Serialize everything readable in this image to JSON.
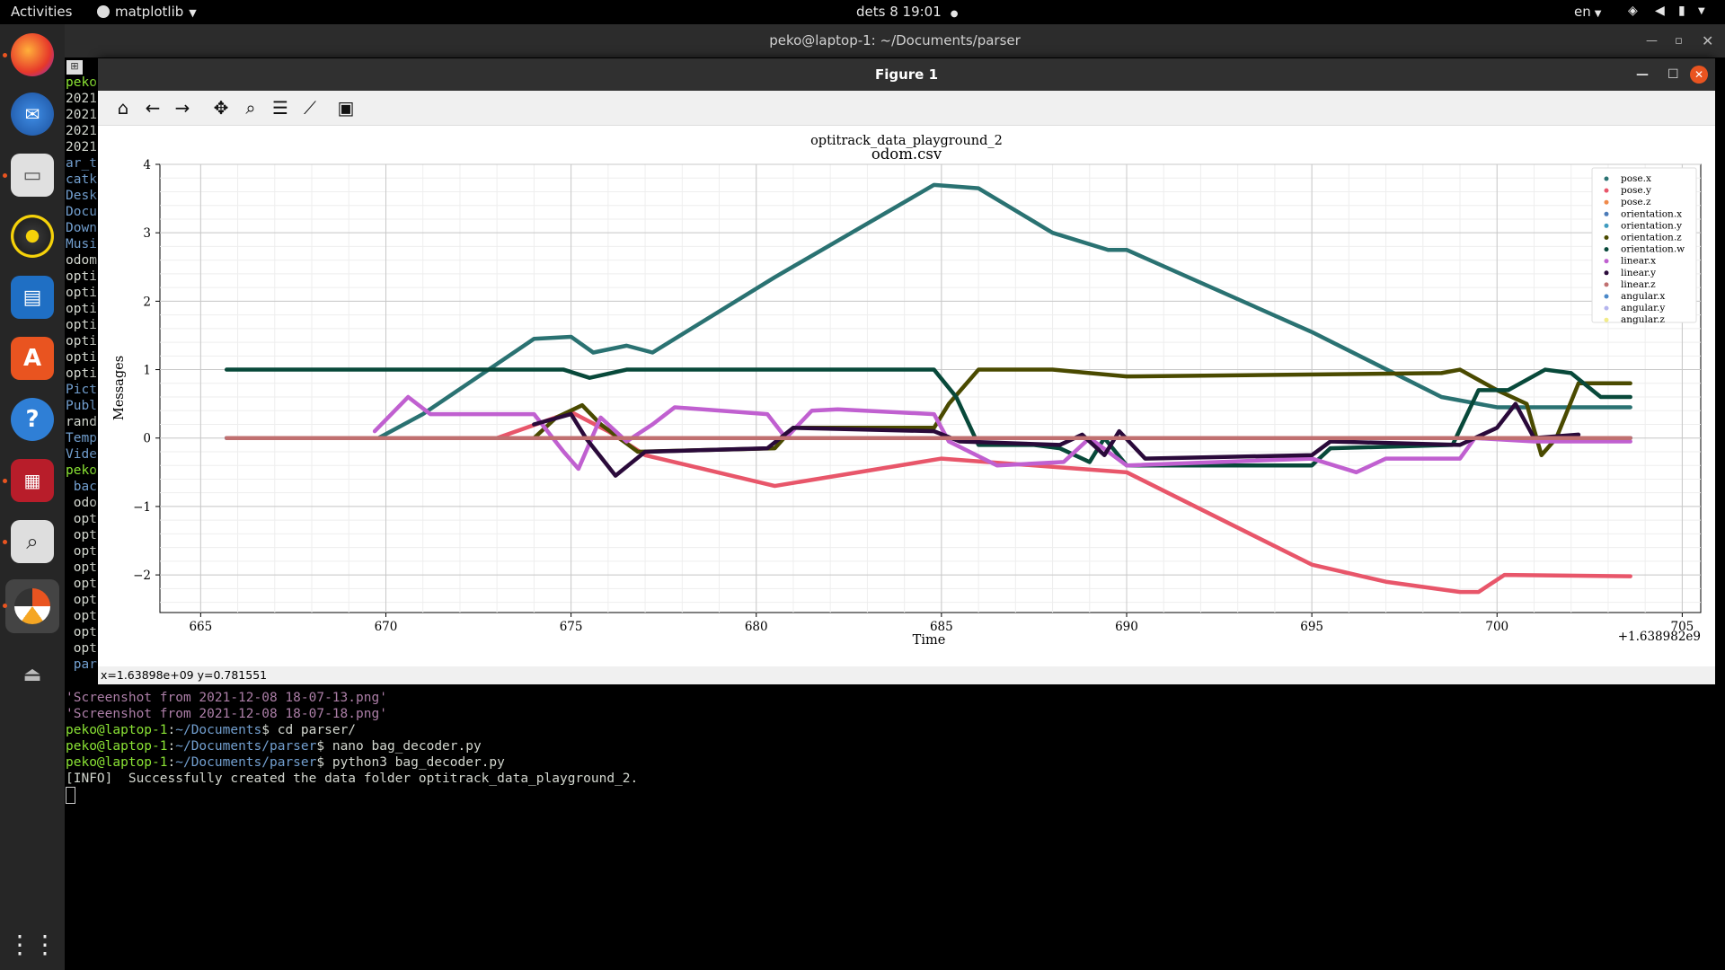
{
  "topbar": {
    "activities": "Activities",
    "app_name": "matplotlib",
    "datetime": "dets 8  19:01",
    "lang": "en"
  },
  "terminal": {
    "title": "peko@laptop-1: ~/Documents/parser",
    "left_lines": [
      {
        "t": "peko",
        "c": "#8ae234"
      },
      {
        "t": "2021",
        "c": "#d3d7cf"
      },
      {
        "t": "2021",
        "c": "#d3d7cf"
      },
      {
        "t": "2021",
        "c": "#d3d7cf"
      },
      {
        "t": "2021",
        "c": "#d3d7cf"
      },
      {
        "t": "ar_t",
        "c": "#729fcf"
      },
      {
        "t": "catk",
        "c": "#729fcf"
      },
      {
        "t": "Desk",
        "c": "#729fcf"
      },
      {
        "t": "Docu",
        "c": "#729fcf"
      },
      {
        "t": "Down",
        "c": "#729fcf"
      },
      {
        "t": "Musi",
        "c": "#729fcf"
      },
      {
        "t": "odom",
        "c": "#d3d7cf"
      },
      {
        "t": "opti",
        "c": "#d3d7cf"
      },
      {
        "t": "opti",
        "c": "#d3d7cf"
      },
      {
        "t": "opti",
        "c": "#d3d7cf"
      },
      {
        "t": "opti",
        "c": "#d3d7cf"
      },
      {
        "t": "opti",
        "c": "#d3d7cf"
      },
      {
        "t": "opti",
        "c": "#d3d7cf"
      },
      {
        "t": "opti",
        "c": "#d3d7cf"
      },
      {
        "t": "Pict",
        "c": "#729fcf"
      },
      {
        "t": "Publ",
        "c": "#729fcf"
      },
      {
        "t": "rand",
        "c": "#d3d7cf"
      },
      {
        "t": "Temp",
        "c": "#729fcf"
      },
      {
        "t": "Vide",
        "c": "#729fcf"
      },
      {
        "t": "peko",
        "c": "#8ae234"
      },
      {
        "t": " bac",
        "c": "#729fcf"
      },
      {
        "t": " odo",
        "c": "#d3d7cf"
      },
      {
        "t": " opt",
        "c": "#d3d7cf"
      },
      {
        "t": " opt",
        "c": "#d3d7cf"
      },
      {
        "t": " opt",
        "c": "#d3d7cf"
      },
      {
        "t": " opt",
        "c": "#d3d7cf"
      },
      {
        "t": " opt",
        "c": "#d3d7cf"
      },
      {
        "t": " opt",
        "c": "#d3d7cf"
      },
      {
        "t": " opt",
        "c": "#d3d7cf"
      },
      {
        "t": " opt",
        "c": "#d3d7cf"
      },
      {
        "t": " opt",
        "c": "#d3d7cf"
      },
      {
        "t": " par",
        "c": "#729fcf"
      }
    ],
    "lines": [
      {
        "segs": [
          {
            "t": "'Screenshot from 2021-12-08 18-07-13.png'",
            "c": "#ad7fa8"
          }
        ]
      },
      {
        "segs": [
          {
            "t": "'Screenshot from 2021-12-08 18-07-18.png'",
            "c": "#ad7fa8"
          }
        ]
      },
      {
        "segs": [
          {
            "t": "peko@laptop-1",
            "c": "#8ae234"
          },
          {
            "t": ":",
            "c": "#d3d7cf"
          },
          {
            "t": "~/Documents",
            "c": "#729fcf"
          },
          {
            "t": "$ cd parser/",
            "c": "#d3d7cf"
          }
        ]
      },
      {
        "segs": [
          {
            "t": "peko@laptop-1",
            "c": "#8ae234"
          },
          {
            "t": ":",
            "c": "#d3d7cf"
          },
          {
            "t": "~/Documents/parser",
            "c": "#729fcf"
          },
          {
            "t": "$ nano bag_decoder.py",
            "c": "#d3d7cf"
          }
        ]
      },
      {
        "segs": [
          {
            "t": "peko@laptop-1",
            "c": "#8ae234"
          },
          {
            "t": ":",
            "c": "#d3d7cf"
          },
          {
            "t": "~/Documents/parser",
            "c": "#729fcf"
          },
          {
            "t": "$ python3 bag_decoder.py",
            "c": "#d3d7cf"
          }
        ]
      },
      {
        "segs": [
          {
            "t": "[INFO]  Successfully created the data folder optitrack_data_playground_2.",
            "c": "#d3d7cf"
          }
        ]
      }
    ]
  },
  "figure": {
    "window_title": "Figure 1",
    "status": "x=1.63898e+09  y=0.781551"
  },
  "chart_data": {
    "type": "scatter",
    "title": "optitrack_data_playground_2",
    "subtitle": "odom.csv",
    "xlabel": "Time",
    "ylabel": "Messages",
    "x_offset_label": "+1.638982e9",
    "xlim": [
      663.9,
      705.5
    ],
    "ylim": [
      -2.55,
      4.0
    ],
    "xticks": [
      665,
      670,
      675,
      680,
      685,
      690,
      695,
      700,
      705
    ],
    "yticks": [
      -2,
      -1,
      0,
      1,
      2,
      3,
      4
    ],
    "ytick_labels": [
      "−2",
      "−1",
      "0",
      "1",
      "2",
      "3",
      "4"
    ],
    "grid": true,
    "legend_position": "top-right",
    "series": [
      {
        "name": "pose.x",
        "color": "#2a7272",
        "points": [
          [
            669.8,
            0
          ],
          [
            671,
            0.35
          ],
          [
            674,
            1.45
          ],
          [
            675,
            1.48
          ],
          [
            675.6,
            1.25
          ],
          [
            676.5,
            1.35
          ],
          [
            677.2,
            1.25
          ],
          [
            680.5,
            2.35
          ],
          [
            684.8,
            3.7
          ],
          [
            686,
            3.65
          ],
          [
            688,
            3.0
          ],
          [
            689.5,
            2.75
          ],
          [
            690,
            2.75
          ],
          [
            695,
            1.55
          ],
          [
            698.5,
            0.6
          ],
          [
            700,
            0.45
          ],
          [
            703.6,
            0.45
          ]
        ]
      },
      {
        "name": "pose.y",
        "color": "#e8566a",
        "points": [
          [
            669.8,
            0
          ],
          [
            673,
            0
          ],
          [
            675,
            0.38
          ],
          [
            676,
            0.1
          ],
          [
            677,
            -0.25
          ],
          [
            680.5,
            -0.7
          ],
          [
            685,
            -0.3
          ],
          [
            690,
            -0.5
          ],
          [
            695,
            -1.85
          ],
          [
            697,
            -2.1
          ],
          [
            699,
            -2.25
          ],
          [
            699.5,
            -2.25
          ],
          [
            700.2,
            -2.0
          ],
          [
            703.6,
            -2.02
          ]
        ]
      },
      {
        "name": "pose.z",
        "color": "#f08a4a",
        "points": [
          [
            665.7,
            0
          ],
          [
            703.6,
            0
          ]
        ]
      },
      {
        "name": "orientation.x",
        "color": "#4b7bb8",
        "points": [
          [
            665.7,
            0
          ],
          [
            703.6,
            0
          ]
        ]
      },
      {
        "name": "orientation.y",
        "color": "#3f9bbf",
        "points": [
          [
            665.7,
            0
          ],
          [
            703.6,
            0
          ]
        ]
      },
      {
        "name": "orientation.z",
        "color": "#4a4a00",
        "points": [
          [
            669.8,
            0
          ],
          [
            674,
            0
          ],
          [
            674.6,
            0.3
          ],
          [
            675.3,
            0.48
          ],
          [
            675.8,
            0.2
          ],
          [
            676.8,
            -0.2
          ],
          [
            680.5,
            -0.15
          ],
          [
            681,
            0.15
          ],
          [
            684.8,
            0.15
          ],
          [
            685.2,
            0.5
          ],
          [
            686,
            1.0
          ],
          [
            688,
            1.0
          ],
          [
            689,
            0.95
          ],
          [
            690,
            0.9
          ],
          [
            698.5,
            0.95
          ],
          [
            699,
            1.0
          ],
          [
            700,
            0.7
          ],
          [
            700.8,
            0.5
          ],
          [
            701.2,
            -0.25
          ],
          [
            701.6,
            0
          ],
          [
            702.2,
            0.8
          ],
          [
            703.6,
            0.8
          ]
        ]
      },
      {
        "name": "orientation.w",
        "color": "#08493a",
        "points": [
          [
            665.7,
            1.0
          ],
          [
            674.8,
            1.0
          ],
          [
            675.5,
            0.88
          ],
          [
            676.5,
            1.0
          ],
          [
            684.8,
            1.0
          ],
          [
            685.4,
            0.6
          ],
          [
            686,
            -0.1
          ],
          [
            687.5,
            -0.1
          ],
          [
            688.2,
            -0.15
          ],
          [
            689,
            -0.35
          ],
          [
            689.4,
            0
          ],
          [
            690,
            -0.4
          ],
          [
            695,
            -0.4
          ],
          [
            695.5,
            -0.15
          ],
          [
            698.8,
            -0.1
          ],
          [
            699.5,
            0.7
          ],
          [
            700.3,
            0.7
          ],
          [
            701.3,
            1.0
          ],
          [
            702,
            0.95
          ],
          [
            702.8,
            0.6
          ],
          [
            703.6,
            0.6
          ]
        ]
      },
      {
        "name": "linear.x",
        "color": "#c060d0",
        "points": [
          [
            669.7,
            0.1
          ],
          [
            670.6,
            0.6
          ],
          [
            671.2,
            0.35
          ],
          [
            674,
            0.35
          ],
          [
            674.8,
            -0.2
          ],
          [
            675.2,
            -0.45
          ],
          [
            675.8,
            0.3
          ],
          [
            676.5,
            -0.05
          ],
          [
            677.2,
            0.2
          ],
          [
            677.8,
            0.45
          ],
          [
            680.3,
            0.35
          ],
          [
            680.8,
            0
          ],
          [
            681.5,
            0.4
          ],
          [
            682.2,
            0.42
          ],
          [
            684.8,
            0.35
          ],
          [
            685.2,
            -0.05
          ],
          [
            686.5,
            -0.4
          ],
          [
            688.3,
            -0.35
          ],
          [
            689,
            0
          ],
          [
            690,
            -0.4
          ],
          [
            695,
            -0.3
          ],
          [
            696.2,
            -0.5
          ],
          [
            697,
            -0.3
          ],
          [
            699,
            -0.3
          ],
          [
            699.4,
            0
          ],
          [
            701,
            -0.05
          ],
          [
            703.6,
            -0.05
          ]
        ]
      },
      {
        "name": "linear.y",
        "color": "#2a0a3a",
        "points": [
          [
            674,
            0.2
          ],
          [
            675,
            0.35
          ],
          [
            675.4,
            0
          ],
          [
            676.2,
            -0.55
          ],
          [
            677,
            -0.2
          ],
          [
            680.3,
            -0.15
          ],
          [
            681,
            0.15
          ],
          [
            684.8,
            0.1
          ],
          [
            685.5,
            -0.05
          ],
          [
            688.2,
            -0.1
          ],
          [
            688.8,
            0.05
          ],
          [
            689.4,
            -0.25
          ],
          [
            689.8,
            0.1
          ],
          [
            690.5,
            -0.3
          ],
          [
            695,
            -0.25
          ],
          [
            695.5,
            -0.05
          ],
          [
            699,
            -0.1
          ],
          [
            700,
            0.15
          ],
          [
            700.5,
            0.5
          ],
          [
            701,
            0
          ],
          [
            702.2,
            0.05
          ]
        ]
      },
      {
        "name": "linear.z",
        "color": "#c07070",
        "points": [
          [
            665.7,
            0
          ],
          [
            703.6,
            0
          ]
        ]
      },
      {
        "name": "angular.x",
        "color": "#4a88c8",
        "points": [
          [
            665.7,
            0
          ],
          [
            703.6,
            0
          ]
        ]
      },
      {
        "name": "angular.y",
        "color": "#b4b4ee",
        "points": [
          [
            665.7,
            0
          ],
          [
            703.6,
            0
          ]
        ]
      },
      {
        "name": "angular.z",
        "color": "#f2ec8a",
        "points": [
          [
            665.7,
            0
          ],
          [
            703.6,
            0
          ]
        ]
      }
    ]
  }
}
